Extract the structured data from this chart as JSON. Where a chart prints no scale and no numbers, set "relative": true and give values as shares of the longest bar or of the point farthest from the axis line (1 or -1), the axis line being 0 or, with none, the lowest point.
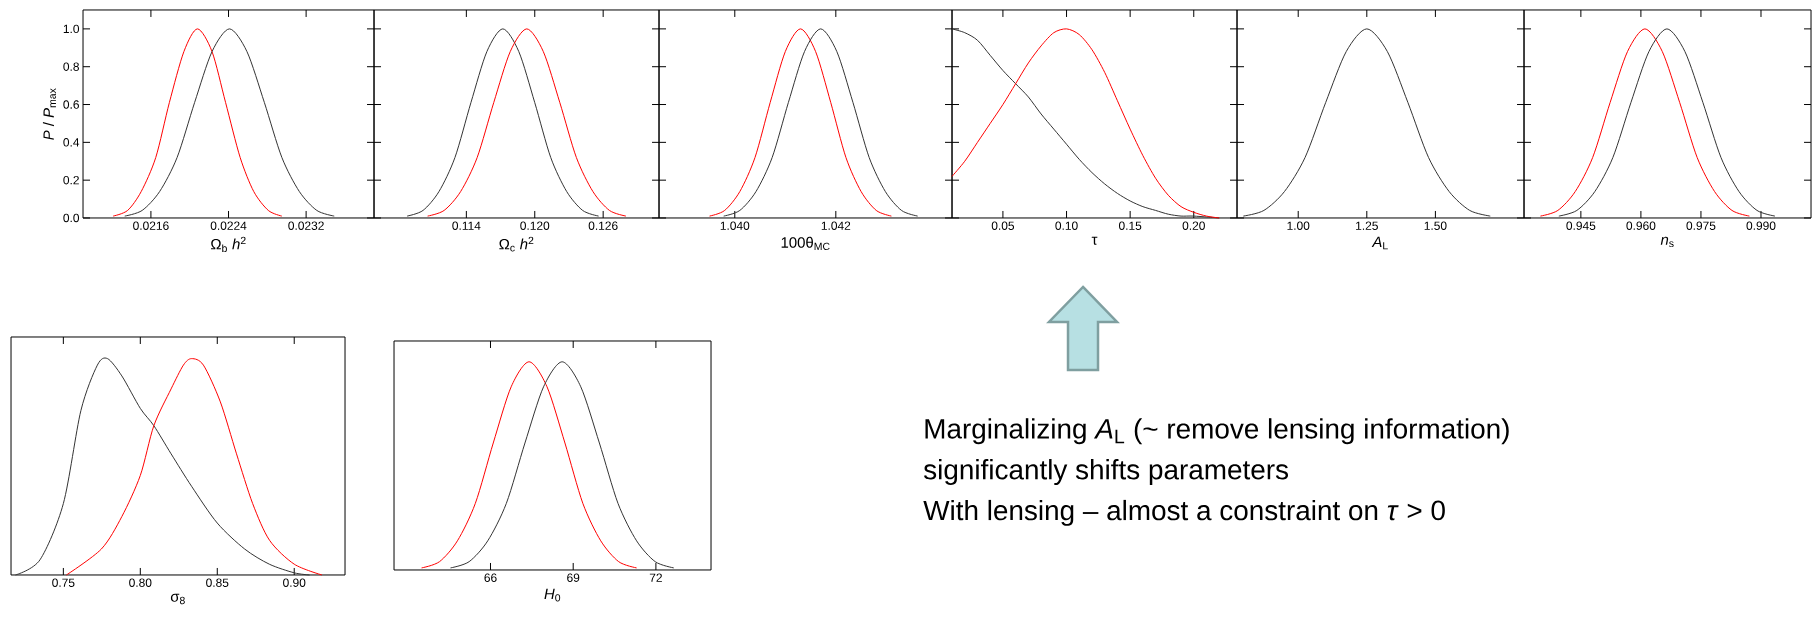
{
  "chart_data": [
    {
      "type": "line",
      "xlabel": "Ω$_{b}$ *h*$^{2}$",
      "ylabel": "*P* / *P*$_{max}$",
      "xlim": [
        0.0209,
        0.0239
      ],
      "ylim": [
        0,
        1.1
      ],
      "xticks": [
        0.0216,
        0.0224,
        0.0232
      ],
      "yticks": [
        {
          "value": 0,
          "label": "0.0"
        },
        0.2,
        0.4,
        0.6,
        0.8,
        {
          "value": 1,
          "label": "1.0"
        }
      ],
      "series": [
        {
          "color": "#ff0000",
          "x": [
            0.02121,
            0.02136,
            0.0215,
            0.02165,
            0.02179,
            0.02194,
            0.02208,
            0.02223,
            0.02237,
            0.02252,
            0.02266,
            0.02281,
            0.02295
          ],
          "values": [
            0.01,
            0.04,
            0.14,
            0.32,
            0.61,
            0.88,
            1,
            0.88,
            0.61,
            0.32,
            0.14,
            0.04,
            0.01
          ]
        },
        {
          "color": "#333333",
          "x": [
            0.02133,
            0.02151,
            0.02169,
            0.02187,
            0.02205,
            0.02223,
            0.02241,
            0.02259,
            0.02277,
            0.02295,
            0.02313,
            0.02331,
            0.02349
          ],
          "values": [
            0.01,
            0.04,
            0.14,
            0.32,
            0.61,
            0.88,
            1,
            0.88,
            0.61,
            0.32,
            0.14,
            0.04,
            0.01
          ]
        }
      ]
    },
    {
      "type": "line",
      "xlabel": "Ω$_{c}$ *h*$^{2}$",
      "xlim": [
        0.1059,
        0.1309
      ],
      "ylim": [
        0,
        1.1
      ],
      "xticks": [
        0.114,
        {
          "value": 0.12,
          "label": "0.120"
        },
        0.126
      ],
      "yticks": [
        0,
        0.2,
        0.4,
        0.6,
        0.8,
        1
      ],
      "tick_labels": "x",
      "series": [
        {
          "color": "#333333",
          "x": [
            0.1088,
            0.1102,
            0.1116,
            0.113,
            0.1144,
            0.1158,
            0.1172,
            0.1186,
            0.12,
            0.1214,
            0.1228,
            0.1242,
            0.1256
          ],
          "values": [
            0.01,
            0.04,
            0.14,
            0.32,
            0.61,
            0.88,
            1,
            0.88,
            0.61,
            0.32,
            0.14,
            0.04,
            0.01
          ]
        },
        {
          "color": "#ff0000",
          "x": [
            0.1106,
            0.11205,
            0.1135,
            0.11495,
            0.1164,
            0.11785,
            0.1193,
            0.12075,
            0.1222,
            0.12365,
            0.1251,
            0.12655,
            0.128
          ],
          "values": [
            0.01,
            0.04,
            0.14,
            0.32,
            0.61,
            0.88,
            1,
            0.88,
            0.61,
            0.32,
            0.14,
            0.04,
            0.01
          ]
        }
      ]
    },
    {
      "type": "line",
      "xlabel": "100θ$_{MC}$",
      "xlim": [
        1.0385,
        1.0443
      ],
      "ylim": [
        0,
        1.1
      ],
      "xticks": [
        {
          "value": 1.04,
          "label": "1.040"
        },
        1.042
      ],
      "yticks": [
        0,
        0.2,
        0.4,
        0.6,
        0.8,
        1
      ],
      "tick_labels": "x",
      "series": [
        {
          "color": "#ff0000",
          "x": [
            1.0395,
            1.0398,
            1.0401,
            1.0404,
            1.0407,
            1.041,
            1.0413,
            1.0416,
            1.0419,
            1.0422,
            1.0425,
            1.0428,
            1.0431
          ],
          "values": [
            0.01,
            0.04,
            0.14,
            0.32,
            0.61,
            0.88,
            1,
            0.88,
            0.61,
            0.32,
            0.14,
            0.04,
            0.01
          ]
        },
        {
          "color": "#333333",
          "x": [
            1.03978,
            1.0401,
            1.04042,
            1.04074,
            1.04106,
            1.04138,
            1.0417,
            1.04202,
            1.04234,
            1.04266,
            1.04298,
            1.0433,
            1.04362
          ],
          "values": [
            0.01,
            0.04,
            0.14,
            0.32,
            0.61,
            0.88,
            1,
            0.88,
            0.61,
            0.32,
            0.14,
            0.04,
            0.01
          ]
        }
      ]
    },
    {
      "type": "line",
      "xlabel": "τ",
      "xlim": [
        0.01,
        0.234
      ],
      "ylim": [
        0,
        1.1
      ],
      "xticks": [
        0.05,
        {
          "value": 0.1,
          "label": "0.10"
        },
        0.15,
        {
          "value": 0.2,
          "label": "0.20"
        }
      ],
      "yticks": [
        0,
        0.2,
        0.4,
        0.6,
        0.8,
        1
      ],
      "tick_labels": "x",
      "annotations": [
        "Marginalizing *A*$_{L}$ (~ remove lensing information)",
        "significantly shifts parameters",
        "With lensing – almost a constraint on *τ* > 0"
      ],
      "series": [
        {
          "color": "#333333",
          "x": [
            0.01,
            0.02,
            0.03,
            0.04,
            0.05,
            0.06,
            0.07,
            0.08,
            0.09,
            0.1,
            0.11,
            0.12,
            0.13,
            0.14,
            0.15,
            0.16,
            0.17,
            0.18,
            0.19,
            0.2,
            0.22
          ],
          "values": [
            1,
            0.98,
            0.94,
            0.86,
            0.78,
            0.71,
            0.64,
            0.55,
            0.47,
            0.39,
            0.31,
            0.24,
            0.18,
            0.13,
            0.09,
            0.06,
            0.04,
            0.02,
            0.01,
            0.01,
            0
          ]
        },
        {
          "color": "#ff0000",
          "x": [
            0.01,
            0.02,
            0.03,
            0.04,
            0.05,
            0.06,
            0.07,
            0.08,
            0.09,
            0.1,
            0.11,
            0.12,
            0.13,
            0.14,
            0.15,
            0.16,
            0.17,
            0.18,
            0.19,
            0.2,
            0.21,
            0.22
          ],
          "values": [
            0.22,
            0.3,
            0.4,
            0.5,
            0.6,
            0.71,
            0.82,
            0.91,
            0.98,
            1,
            0.97,
            0.89,
            0.77,
            0.62,
            0.47,
            0.33,
            0.21,
            0.12,
            0.06,
            0.03,
            0.01,
            0
          ]
        }
      ]
    },
    {
      "type": "line",
      "xlabel": "*A*$_{L}$",
      "xlim": [
        0.777,
        1.823
      ],
      "ylim": [
        0,
        1.1
      ],
      "xticks": [
        {
          "value": 1,
          "label": "1.00"
        },
        1.25,
        {
          "value": 1.5,
          "label": "1.50"
        }
      ],
      "yticks": [
        0,
        0.2,
        0.4,
        0.6,
        0.8,
        1
      ],
      "tick_labels": "x",
      "series": [
        {
          "color": "#333333",
          "x": [
            0.8,
            0.875,
            0.95,
            1.025,
            1.1,
            1.175,
            1.25,
            1.325,
            1.4,
            1.475,
            1.55,
            1.625,
            1.7
          ],
          "values": [
            0.01,
            0.04,
            0.14,
            0.32,
            0.61,
            0.88,
            1,
            0.88,
            0.61,
            0.32,
            0.14,
            0.04,
            0.01
          ]
        }
      ]
    },
    {
      "type": "line",
      "xlabel": "*n*$_{s}$",
      "xlim": [
        0.9308,
        1.0025
      ],
      "ylim": [
        0,
        1.1
      ],
      "xticks": [
        0.945,
        {
          "value": 0.96,
          "label": "0.960"
        },
        0.975,
        {
          "value": 0.99,
          "label": "0.990"
        }
      ],
      "yticks": [
        0,
        0.2,
        0.4,
        0.6,
        0.8,
        1
      ],
      "tick_labels": "x",
      "series": [
        {
          "color": "#ff0000",
          "x": [
            0.9349,
            0.93925,
            0.9436,
            0.94795,
            0.9523,
            0.95665,
            0.961,
            0.96535,
            0.9697,
            0.97405,
            0.9784,
            0.98275,
            0.9871
          ],
          "values": [
            0.01,
            0.04,
            0.14,
            0.32,
            0.61,
            0.88,
            1,
            0.88,
            0.61,
            0.32,
            0.14,
            0.04,
            0.01
          ]
        },
        {
          "color": "#333333",
          "x": [
            0.9395,
            0.944,
            0.9485,
            0.953,
            0.9575,
            0.962,
            0.9665,
            0.971,
            0.9755,
            0.98,
            0.9845,
            0.989,
            0.9935
          ],
          "values": [
            0.01,
            0.04,
            0.14,
            0.32,
            0.61,
            0.88,
            1,
            0.88,
            0.61,
            0.32,
            0.14,
            0.04,
            0.01
          ]
        }
      ]
    },
    {
      "type": "line",
      "xlabel": "σ$_{8}$",
      "xlim": [
        0.716,
        0.933
      ],
      "xticks": [
        0.75,
        {
          "value": 0.8,
          "label": "0.80"
        },
        0.85,
        {
          "value": 0.9,
          "label": "0.90"
        }
      ],
      "relative": true,
      "series": [
        {
          "color": "#333333",
          "x": [
            0.7189,
            0.7348,
            0.75,
            0.7614,
            0.7721,
            0.7787,
            0.788,
            0.8,
            0.8088,
            0.82,
            0.8333,
            0.85,
            0.8678,
            0.8838,
            0.9,
            0.91
          ],
          "values": [
            0,
            0.07,
            0.33,
            0.76,
            0.97,
            1,
            0.92,
            0.77,
            0.69,
            0.56,
            0.41,
            0.24,
            0.12,
            0.05,
            0.01,
            0
          ]
        },
        {
          "color": "#ff0000",
          "x": [
            0.752,
            0.7747,
            0.788,
            0.8,
            0.8088,
            0.82,
            0.828,
            0.8333,
            0.841,
            0.852,
            0.8625,
            0.873,
            0.884,
            0.9,
            0.918
          ],
          "values": [
            0,
            0.12,
            0.27,
            0.46,
            0.69,
            0.86,
            0.97,
            1,
            0.97,
            0.8,
            0.56,
            0.33,
            0.16,
            0.05,
            0
          ]
        }
      ]
    },
    {
      "type": "line",
      "xlabel": "*H*$_{0}$",
      "xlim": [
        62.5,
        74
      ],
      "xticks": [
        66,
        69,
        72
      ],
      "relative": true,
      "series": [
        {
          "color": "#ff0000",
          "x": [
            63.5,
            64.15,
            64.8,
            65.45,
            66.1,
            66.75,
            67.4,
            68.05,
            68.7,
            69.35,
            70,
            70.65,
            71.3
          ],
          "values": [
            0.01,
            0.04,
            0.14,
            0.32,
            0.61,
            0.88,
            1,
            0.88,
            0.61,
            0.32,
            0.14,
            0.04,
            0.01
          ]
        },
        {
          "color": "#333333",
          "x": [
            64.55,
            65.225,
            65.9,
            66.575,
            67.25,
            67.925,
            68.6,
            69.275,
            69.95,
            70.625,
            71.3,
            71.975,
            72.65
          ],
          "values": [
            0.01,
            0.04,
            0.14,
            0.32,
            0.61,
            0.88,
            1,
            0.88,
            0.61,
            0.32,
            0.14,
            0.04,
            0.01
          ]
        }
      ]
    }
  ]
}
